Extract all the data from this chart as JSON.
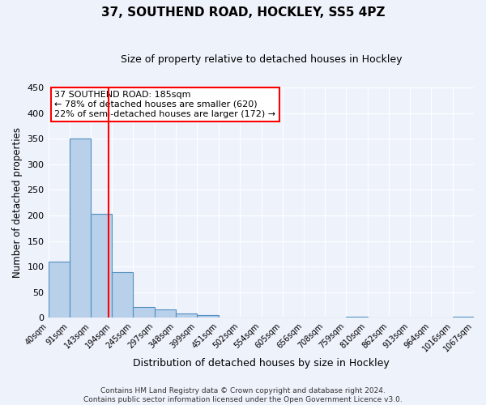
{
  "title": "37, SOUTHEND ROAD, HOCKLEY, SS5 4PZ",
  "subtitle": "Size of property relative to detached houses in Hockley",
  "xlabel": "Distribution of detached houses by size in Hockley",
  "ylabel": "Number of detached properties",
  "bar_edges": [
    40,
    91,
    143,
    194,
    245,
    297,
    348,
    399,
    451,
    502,
    554,
    605,
    656,
    708,
    759,
    810,
    862,
    913,
    964,
    1016,
    1067
  ],
  "bar_heights": [
    110,
    350,
    204,
    89,
    22,
    16,
    8,
    5,
    0,
    0,
    0,
    0,
    0,
    0,
    3,
    0,
    0,
    0,
    0,
    3
  ],
  "bar_color": "#b8d0ea",
  "bar_edge_color": "#5090c0",
  "ylim": [
    0,
    450
  ],
  "yticks": [
    0,
    50,
    100,
    150,
    200,
    250,
    300,
    350,
    400,
    450
  ],
  "property_line_x": 185,
  "property_line_color": "red",
  "annotation_title": "37 SOUTHEND ROAD: 185sqm",
  "annotation_line1": "← 78% of detached houses are smaller (620)",
  "annotation_line2": "22% of semi-detached houses are larger (172) →",
  "annotation_box_facecolor": "white",
  "annotation_box_edgecolor": "red",
  "footer_line1": "Contains HM Land Registry data © Crown copyright and database right 2024.",
  "footer_line2": "Contains public sector information licensed under the Open Government Licence v3.0.",
  "background_color": "#eef2fb",
  "grid_color": "white",
  "title_fontsize": 11,
  "subtitle_fontsize": 9,
  "ylabel_fontsize": 8.5,
  "xlabel_fontsize": 9,
  "ytick_fontsize": 8,
  "xtick_fontsize": 7,
  "footer_fontsize": 6.5,
  "annot_fontsize": 8
}
